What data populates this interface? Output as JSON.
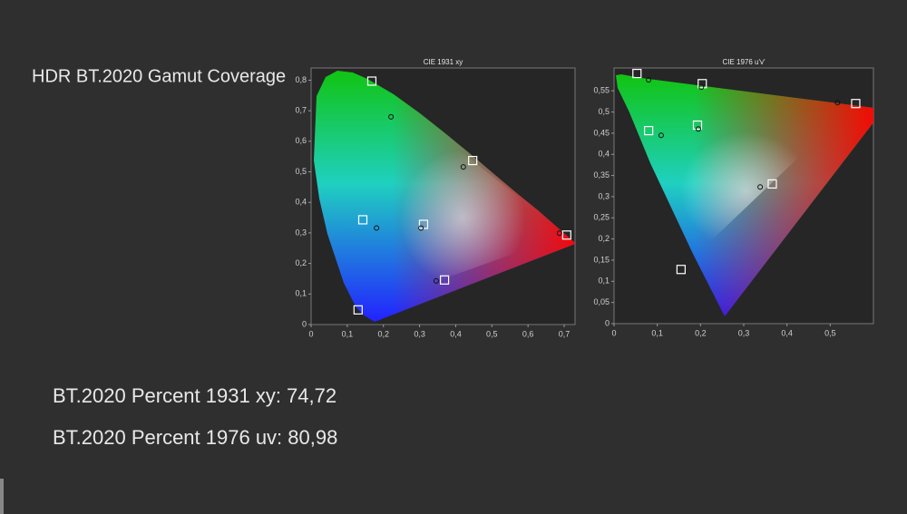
{
  "header": {
    "title": "HDR BT.2020  Gamut Coverage"
  },
  "results": [
    "BT.2020 Percent 1931 xy: 74,72",
    "BT.2020 Percent 1976 uv: 80,98"
  ],
  "chart_data": [
    {
      "type": "scatter",
      "title": "CIE 1931 xy",
      "xlim": [
        0,
        0.73
      ],
      "ylim": [
        0,
        0.84
      ],
      "xticks": [
        0,
        {
          "value": 0.1,
          "label": "0,1"
        },
        {
          "value": 0.2,
          "label": "0,2"
        },
        {
          "value": 0.3,
          "label": "0,3"
        },
        {
          "value": 0.4,
          "label": "0,4"
        },
        {
          "value": 0.5,
          "label": "0,5"
        },
        {
          "value": 0.6,
          "label": "0,6"
        },
        {
          "value": 0.7,
          "label": "0,7"
        }
      ],
      "yticks": [
        0,
        {
          "value": 0.1,
          "label": "0,1"
        },
        {
          "value": 0.2,
          "label": "0,2"
        },
        {
          "value": 0.3,
          "label": "0,3"
        },
        {
          "value": 0.4,
          "label": "0,4"
        },
        {
          "value": 0.5,
          "label": "0,5"
        },
        {
          "value": 0.6,
          "label": "0,6"
        },
        {
          "value": 0.7,
          "label": "0,7"
        },
        {
          "value": 0.8,
          "label": "0,8"
        }
      ],
      "series": [
        {
          "marker": "square",
          "color": "#ffffff",
          "x": [
            0.168,
            0.447,
            0.707,
            0.311,
            0.369,
            0.143,
            0.13
          ],
          "values": [
            0.797,
            0.537,
            0.293,
            0.328,
            0.146,
            0.343,
            0.048
          ]
        },
        {
          "marker": "circle",
          "color": "#111111",
          "x": [
            0.221,
            0.421,
            0.181,
            0.304,
            0.346,
            0.687
          ],
          "values": [
            0.68,
            0.516,
            0.316,
            0.316,
            0.143,
            0.299
          ]
        }
      ]
    },
    {
      "type": "scatter",
      "title": "CIE 1976 u'v'",
      "xlim": [
        0,
        0.6
      ],
      "ylim": [
        0,
        0.604
      ],
      "xticks": [
        0,
        {
          "value": 0.1,
          "label": "0,1"
        },
        {
          "value": 0.2,
          "label": "0,2"
        },
        {
          "value": 0.3,
          "label": "0,3"
        },
        {
          "value": 0.4,
          "label": "0,4"
        },
        {
          "value": 0.5,
          "label": "0,5"
        }
      ],
      "yticks": [
        0,
        {
          "value": 0.05,
          "label": "0,05"
        },
        {
          "value": 0.1,
          "label": "0,1"
        },
        {
          "value": 0.15,
          "label": "0,15"
        },
        {
          "value": 0.2,
          "label": "0,2"
        },
        {
          "value": 0.25,
          "label": "0,25"
        },
        {
          "value": 0.3,
          "label": "0,3"
        },
        {
          "value": 0.35,
          "label": "0,35"
        },
        {
          "value": 0.4,
          "label": "0,4"
        },
        {
          "value": 0.45,
          "label": "0,45"
        },
        {
          "value": 0.5,
          "label": "0,5"
        },
        {
          "value": 0.55,
          "label": "0,55"
        }
      ],
      "series": [
        {
          "marker": "square",
          "color": "#ffffff",
          "x": [
            0.053,
            0.204,
            0.559,
            0.193,
            0.08,
            0.366,
            0.155
          ],
          "values": [
            0.591,
            0.567,
            0.52,
            0.469,
            0.456,
            0.33,
            0.128
          ]
        },
        {
          "marker": "circle",
          "color": "#111111",
          "x": [
            0.08,
            0.202,
            0.517,
            0.195,
            0.109,
            0.338
          ],
          "values": [
            0.576,
            0.559,
            0.522,
            0.46,
            0.445,
            0.323
          ]
        }
      ]
    }
  ]
}
